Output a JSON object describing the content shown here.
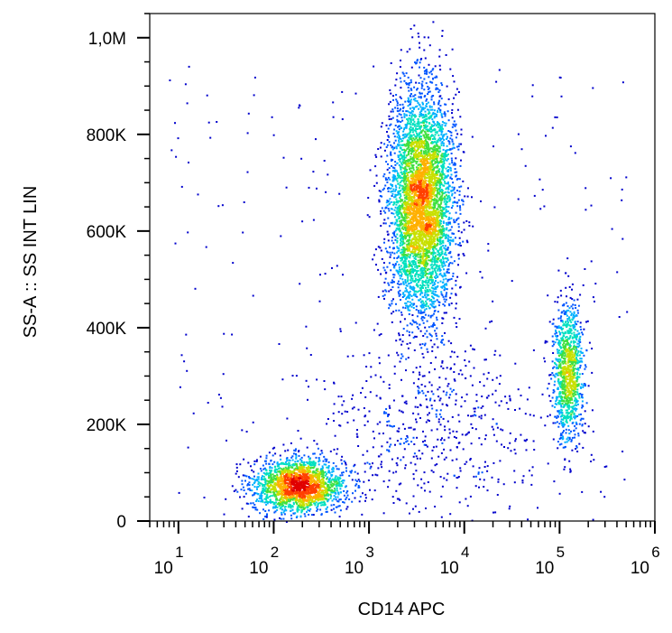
{
  "chart_data": {
    "type": "scatter",
    "style": "density-dot-plot",
    "title": "",
    "xlabel": "CD14 APC",
    "ylabel": "SS-A :: SS INT LIN",
    "x_scale": "log",
    "xlim": [
      5,
      1000000
    ],
    "ylim": [
      0,
      1050000
    ],
    "x_ticks": [
      {
        "base": "10",
        "exp": "1",
        "value": 10
      },
      {
        "base": "10",
        "exp": "2",
        "value": 100
      },
      {
        "base": "10",
        "exp": "3",
        "value": 1000
      },
      {
        "base": "10",
        "exp": "4",
        "value": 10000
      },
      {
        "base": "10",
        "exp": "5",
        "value": 100000
      },
      {
        "base": "10",
        "exp": "6",
        "value": 1000000
      }
    ],
    "y_ticks": [
      {
        "label": "0",
        "value": 0
      },
      {
        "label": "200K",
        "value": 200000
      },
      {
        "label": "400K",
        "value": 400000
      },
      {
        "label": "600K",
        "value": 600000
      },
      {
        "label": "800K",
        "value": 800000
      },
      {
        "label": "1,0M",
        "value": 1000000
      }
    ],
    "density_colors": [
      "#0000cc",
      "#0055ff",
      "#00b0ff",
      "#00e0c0",
      "#40e040",
      "#c8e000",
      "#ffb000",
      "#ff4000",
      "#e00000"
    ],
    "populations": [
      {
        "center_x": 180,
        "center_y": 75000,
        "spread_log_x": 0.24,
        "spread_y": 28000,
        "relative_count": 0.23,
        "peak": "red"
      },
      {
        "center_x": 3500,
        "center_y": 660000,
        "spread_log_x": 0.17,
        "spread_y": 115000,
        "relative_count": 0.52,
        "peak": "green"
      },
      {
        "center_x": 120000,
        "center_y": 310000,
        "spread_log_x": 0.08,
        "spread_y": 70000,
        "relative_count": 0.12,
        "peak": "cyan"
      },
      {
        "center_x": 4000,
        "center_y": 200000,
        "spread_log_x": 0.6,
        "spread_y": 90000,
        "relative_count": 0.06,
        "peak": "blue"
      }
    ]
  }
}
